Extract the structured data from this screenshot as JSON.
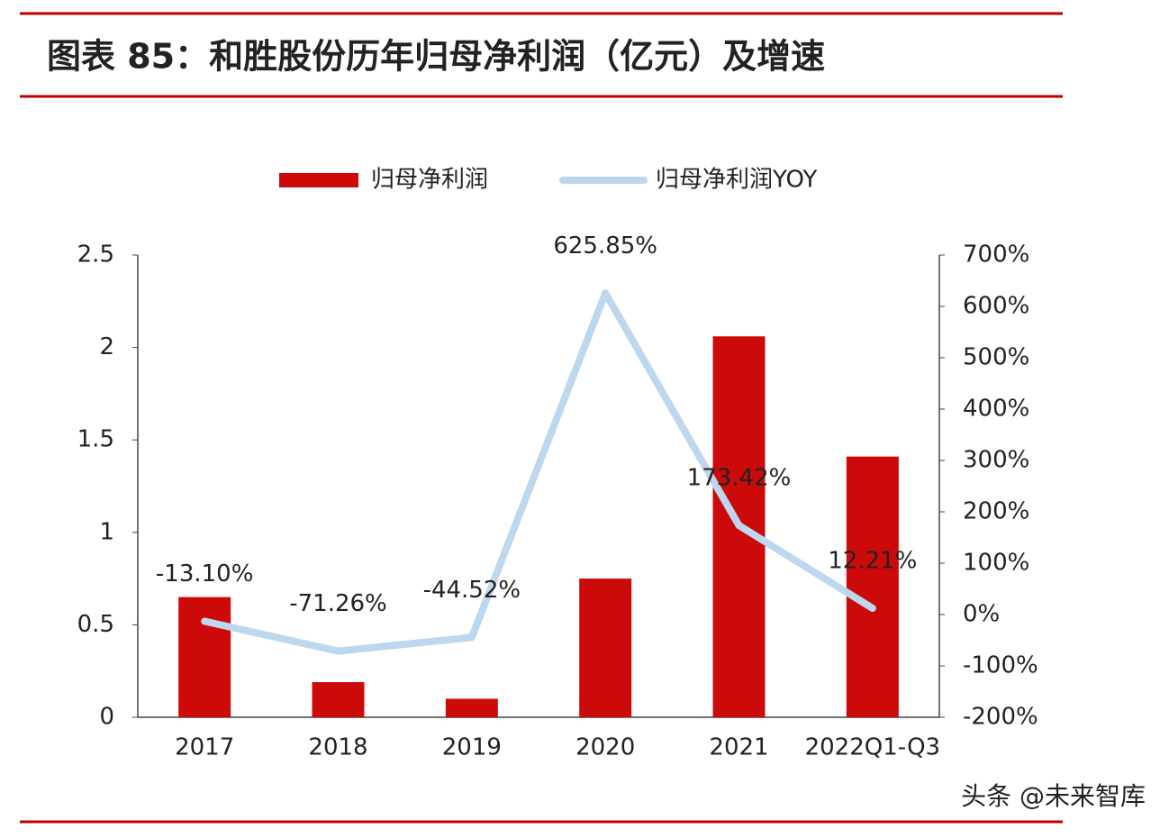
{
  "title": "图表 85：和胜股份历年归母净利润（亿元）及增速",
  "watermark": "头条 @未来智库",
  "chart_data": {
    "type": "bar-line",
    "categories": [
      "2017",
      "2018",
      "2019",
      "2020",
      "2021",
      "2022Q1-Q3"
    ],
    "series": [
      {
        "name": "归母净利润",
        "color": "#cc0a0a",
        "values": [
          0.65,
          0.19,
          0.1,
          0.75,
          2.06,
          1.41
        ]
      },
      {
        "name": "归母净利润YOY",
        "color": "#bdd7ee",
        "axis": "y2",
        "values": [
          -13.1,
          -71.26,
          -44.52,
          625.85,
          173.42,
          12.21
        ],
        "value_labels": [
          "-13.10%",
          "-71.26%",
          "-44.52%",
          "625.85%",
          "173.42%",
          "12.21%"
        ]
      }
    ],
    "ylim": [
      0,
      2.5
    ],
    "yticks": [
      0,
      0.5,
      1,
      1.5,
      2,
      2.5
    ],
    "y2lim": [
      -200,
      700
    ],
    "y2ticks": [
      {
        "value": -200,
        "label": "-200%"
      },
      {
        "value": -100,
        "label": "-100%"
      },
      {
        "value": 0,
        "label": "0%"
      },
      {
        "value": 100,
        "label": "100%"
      },
      {
        "value": 200,
        "label": "200%"
      },
      {
        "value": 300,
        "label": "300%"
      },
      {
        "value": 400,
        "label": "400%"
      },
      {
        "value": 500,
        "label": "500%"
      },
      {
        "value": 600,
        "label": "600%"
      },
      {
        "value": 700,
        "label": "700%"
      }
    ]
  }
}
